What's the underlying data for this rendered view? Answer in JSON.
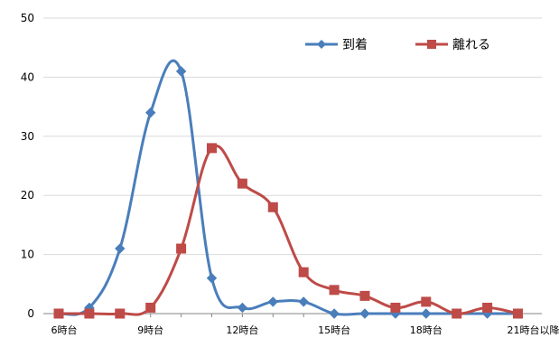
{
  "chart_data": {
    "type": "line",
    "title": "",
    "xlabel": "",
    "ylabel": "",
    "ylim": [
      0,
      50
    ],
    "yticks": [
      0,
      10,
      20,
      30,
      40,
      50
    ],
    "grid": "horizontal",
    "legend_position": "top-right",
    "categories": [
      "6時台",
      "7時台",
      "8時台",
      "9時台",
      "10時台",
      "11時台",
      "12時台",
      "13時台",
      "14時台",
      "15時台",
      "16時台",
      "17時台",
      "18時台",
      "19時台",
      "20時台",
      "21時台以降"
    ],
    "x_tick_labels": [
      "6時台",
      "9時台",
      "12時台",
      "15時台",
      "18時台",
      "21時台以降"
    ],
    "series": [
      {
        "name": "到着",
        "color": "#4a7ebb",
        "marker": "diamond",
        "values": [
          0,
          1,
          11,
          34,
          41,
          6,
          1,
          2,
          2,
          0,
          0,
          0,
          0,
          0,
          0,
          0
        ]
      },
      {
        "name": "離れる",
        "color": "#be4b48",
        "marker": "square",
        "values": [
          0,
          0,
          0,
          1,
          11,
          28,
          22,
          18,
          7,
          4,
          3,
          1,
          2,
          0,
          1,
          0
        ]
      }
    ]
  }
}
